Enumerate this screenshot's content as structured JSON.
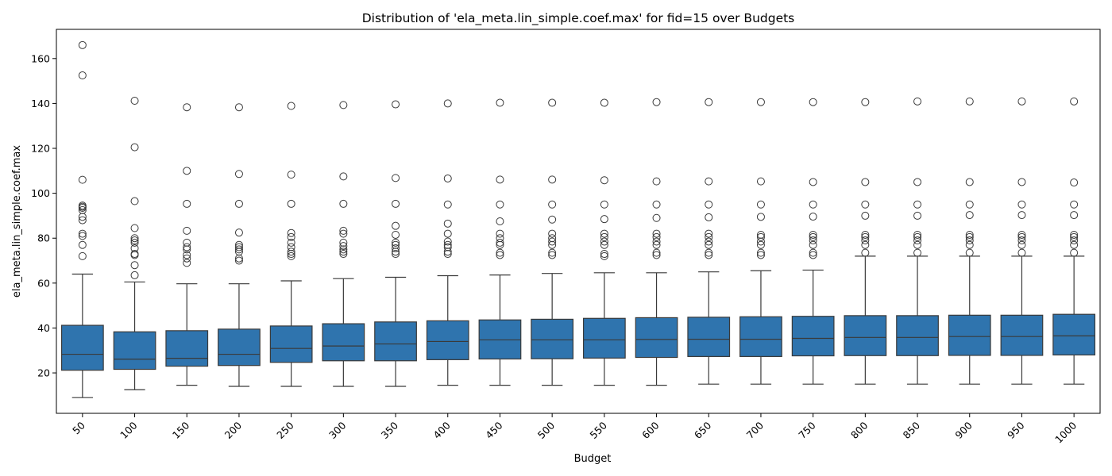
{
  "chart_data": {
    "type": "box",
    "title": "Distribution of 'ela_meta.lin_simple.coef.max' for fid=15 over Budgets",
    "xlabel": "Budget",
    "ylabel": "ela_meta.lin_simple.coef.max",
    "ylim": [
      2,
      173
    ],
    "yticks": [
      20,
      40,
      60,
      80,
      100,
      120,
      140,
      160
    ],
    "grid": false,
    "colors": {
      "box_fill": "#2f74ae",
      "line": "#3a3a3a",
      "outlier_edge": "#3a3a3a"
    },
    "categories": [
      "50",
      "100",
      "150",
      "200",
      "250",
      "300",
      "350",
      "400",
      "450",
      "500",
      "550",
      "600",
      "650",
      "700",
      "750",
      "800",
      "850",
      "900",
      "950",
      "1000"
    ],
    "boxes": [
      {
        "whislo": 9,
        "q1": 21.2,
        "med": 28.3,
        "q3": 41.2,
        "whishi": 64,
        "fliers": [
          72,
          77,
          81,
          82,
          88,
          89.5,
          92.5,
          93.5,
          94,
          94.5,
          106,
          152.5,
          166
        ]
      },
      {
        "whislo": 12.5,
        "q1": 21.6,
        "med": 26.1,
        "q3": 38.3,
        "whishi": 60.5,
        "fliers": [
          63.5,
          68,
          72.5,
          73,
          75.5,
          78,
          79,
          80,
          84.5,
          96.5,
          120.5,
          141.2
        ]
      },
      {
        "whislo": 14.5,
        "q1": 23,
        "med": 26.5,
        "q3": 38.8,
        "whishi": 59.7,
        "fliers": [
          69,
          71,
          72.5,
          75,
          76,
          78,
          83.3,
          95.3,
          110,
          138.3
        ]
      },
      {
        "whislo": 14,
        "q1": 23.3,
        "med": 28.3,
        "q3": 39.5,
        "whishi": 59.7,
        "fliers": [
          70,
          71,
          74,
          75,
          76,
          77,
          82.5,
          95.3,
          108.6,
          138.3
        ]
      },
      {
        "whislo": 14,
        "q1": 24.7,
        "med": 30.9,
        "q3": 40.9,
        "whishi": 61,
        "fliers": [
          72,
          73,
          74,
          76,
          78,
          80.5,
          82.3,
          95.3,
          108.3,
          138.9
        ]
      },
      {
        "whislo": 14,
        "q1": 25.4,
        "med": 32,
        "q3": 41.9,
        "whishi": 62,
        "fliers": [
          73,
          74,
          75,
          76.5,
          78,
          82,
          83.3,
          95.3,
          107.5,
          139.3
        ]
      },
      {
        "whislo": 14,
        "q1": 25.4,
        "med": 32.9,
        "q3": 42.7,
        "whishi": 62.6,
        "fliers": [
          73,
          74,
          75.5,
          77,
          78,
          81.5,
          85.5,
          95.3,
          106.8,
          139.6
        ]
      },
      {
        "whislo": 14.5,
        "q1": 25.9,
        "med": 34,
        "q3": 43.2,
        "whishi": 63.3,
        "fliers": [
          73,
          74,
          76,
          77,
          78.5,
          82,
          86.5,
          95,
          106.6,
          140
        ]
      },
      {
        "whislo": 14.5,
        "q1": 26.2,
        "med": 34.7,
        "q3": 43.6,
        "whishi": 63.6,
        "fliers": [
          72.5,
          73.5,
          77,
          78,
          80,
          82,
          87.5,
          95,
          106.1,
          140.3
        ]
      },
      {
        "whislo": 14.5,
        "q1": 26.3,
        "med": 34.7,
        "q3": 43.9,
        "whishi": 64.3,
        "fliers": [
          72.5,
          73.5,
          77,
          78.5,
          80,
          82,
          88.3,
          95,
          106.1,
          140.3
        ]
      },
      {
        "whislo": 14.5,
        "q1": 26.6,
        "med": 34.7,
        "q3": 44.3,
        "whishi": 64.6,
        "fliers": [
          72,
          73,
          77,
          78.5,
          80.5,
          82,
          88.5,
          95,
          105.8,
          140.3
        ]
      },
      {
        "whislo": 14.5,
        "q1": 26.9,
        "med": 34.9,
        "q3": 44.6,
        "whishi": 64.6,
        "fliers": [
          72.5,
          73.5,
          77,
          78.5,
          80.5,
          82,
          89,
          95,
          105.3,
          140.6
        ]
      },
      {
        "whislo": 15,
        "q1": 27.3,
        "med": 35,
        "q3": 44.8,
        "whishi": 65,
        "fliers": [
          72.5,
          73.5,
          77,
          78.5,
          80.5,
          82,
          89.3,
          95,
          105.3,
          140.6
        ]
      },
      {
        "whislo": 15,
        "q1": 27.3,
        "med": 35,
        "q3": 45,
        "whishi": 65.5,
        "fliers": [
          72.5,
          73.5,
          77,
          78.5,
          80.5,
          81.5,
          89.5,
          95,
          105.3,
          140.6
        ]
      },
      {
        "whislo": 15,
        "q1": 27.6,
        "med": 35.4,
        "q3": 45.2,
        "whishi": 65.8,
        "fliers": [
          72.5,
          73.5,
          77,
          79,
          80.5,
          81.5,
          89.6,
          95,
          105,
          140.6
        ]
      },
      {
        "whislo": 15,
        "q1": 27.7,
        "med": 35.8,
        "q3": 45.5,
        "whishi": 72,
        "fliers": [
          73.5,
          77,
          79,
          80.5,
          81.5,
          90,
          95,
          105,
          140.6
        ]
      },
      {
        "whislo": 15,
        "q1": 27.7,
        "med": 35.8,
        "q3": 45.5,
        "whishi": 72,
        "fliers": [
          73.5,
          77,
          79,
          80.5,
          81.5,
          90,
          95,
          105,
          140.9
        ]
      },
      {
        "whislo": 15,
        "q1": 27.8,
        "med": 36.2,
        "q3": 45.7,
        "whishi": 72,
        "fliers": [
          73.5,
          77,
          79,
          80.5,
          81.5,
          90.3,
          95,
          105,
          140.9
        ]
      },
      {
        "whislo": 15,
        "q1": 27.8,
        "med": 36.2,
        "q3": 45.7,
        "whishi": 72,
        "fliers": [
          73.5,
          77,
          79,
          80.5,
          81.5,
          90.3,
          95,
          105,
          140.9
        ]
      },
      {
        "whislo": 15,
        "q1": 28,
        "med": 36.5,
        "q3": 46.1,
        "whishi": 72,
        "fliers": [
          73.5,
          77,
          79,
          80.5,
          81.5,
          90.3,
          95,
          104.8,
          140.9
        ]
      }
    ]
  }
}
